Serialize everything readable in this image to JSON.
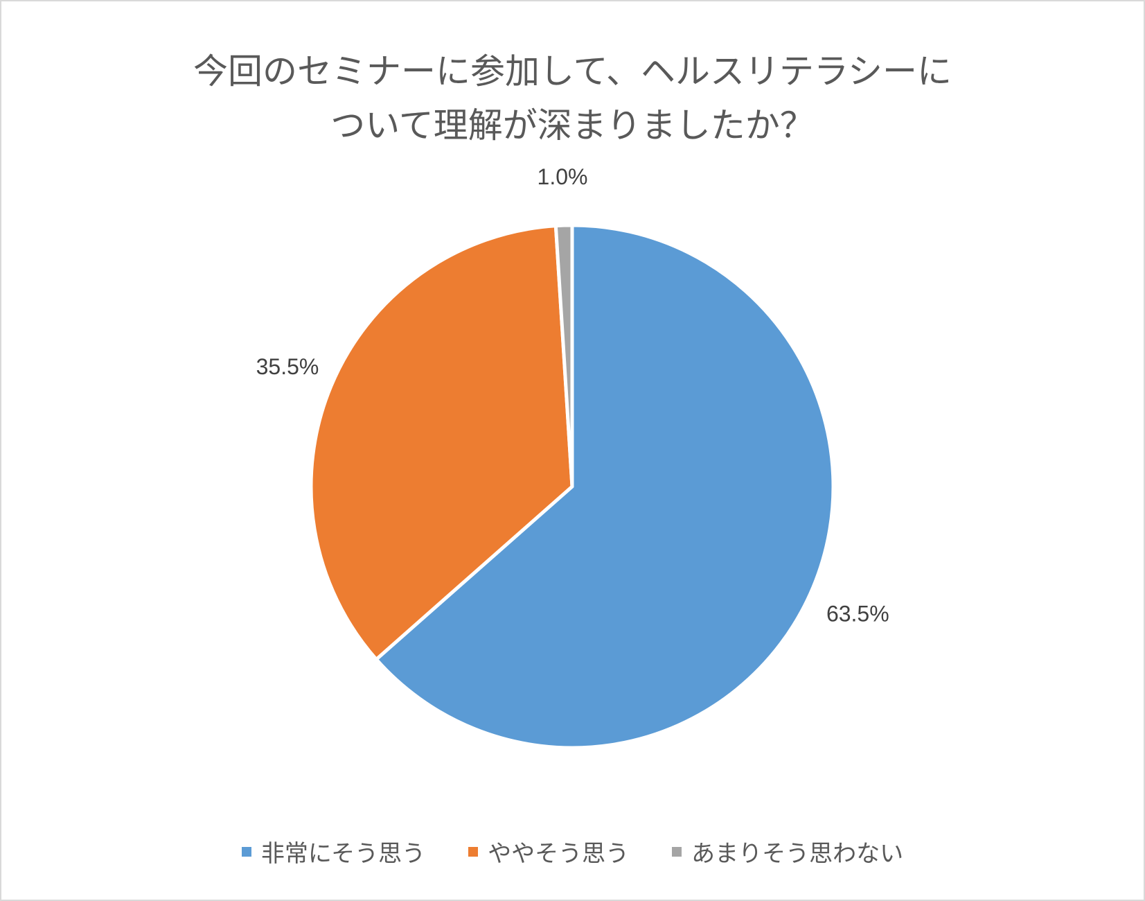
{
  "chart_data": {
    "type": "pie",
    "title_lines": [
      "今回のセミナーに参加して、ヘルスリテラシーに",
      "ついて理解が深まりましたか？"
    ],
    "categories": [
      "非常にそう思う",
      "ややそう思う",
      "あまりそう思わない"
    ],
    "values": [
      63.5,
      35.5,
      1.0
    ],
    "data_labels": [
      "63.5%",
      "35.5%",
      "1.0%"
    ],
    "colors": [
      "#5b9bd5",
      "#ed7d31",
      "#a5a5a5"
    ],
    "start": "12 o'clock",
    "direction": "clockwise",
    "legend_position": "bottom"
  }
}
